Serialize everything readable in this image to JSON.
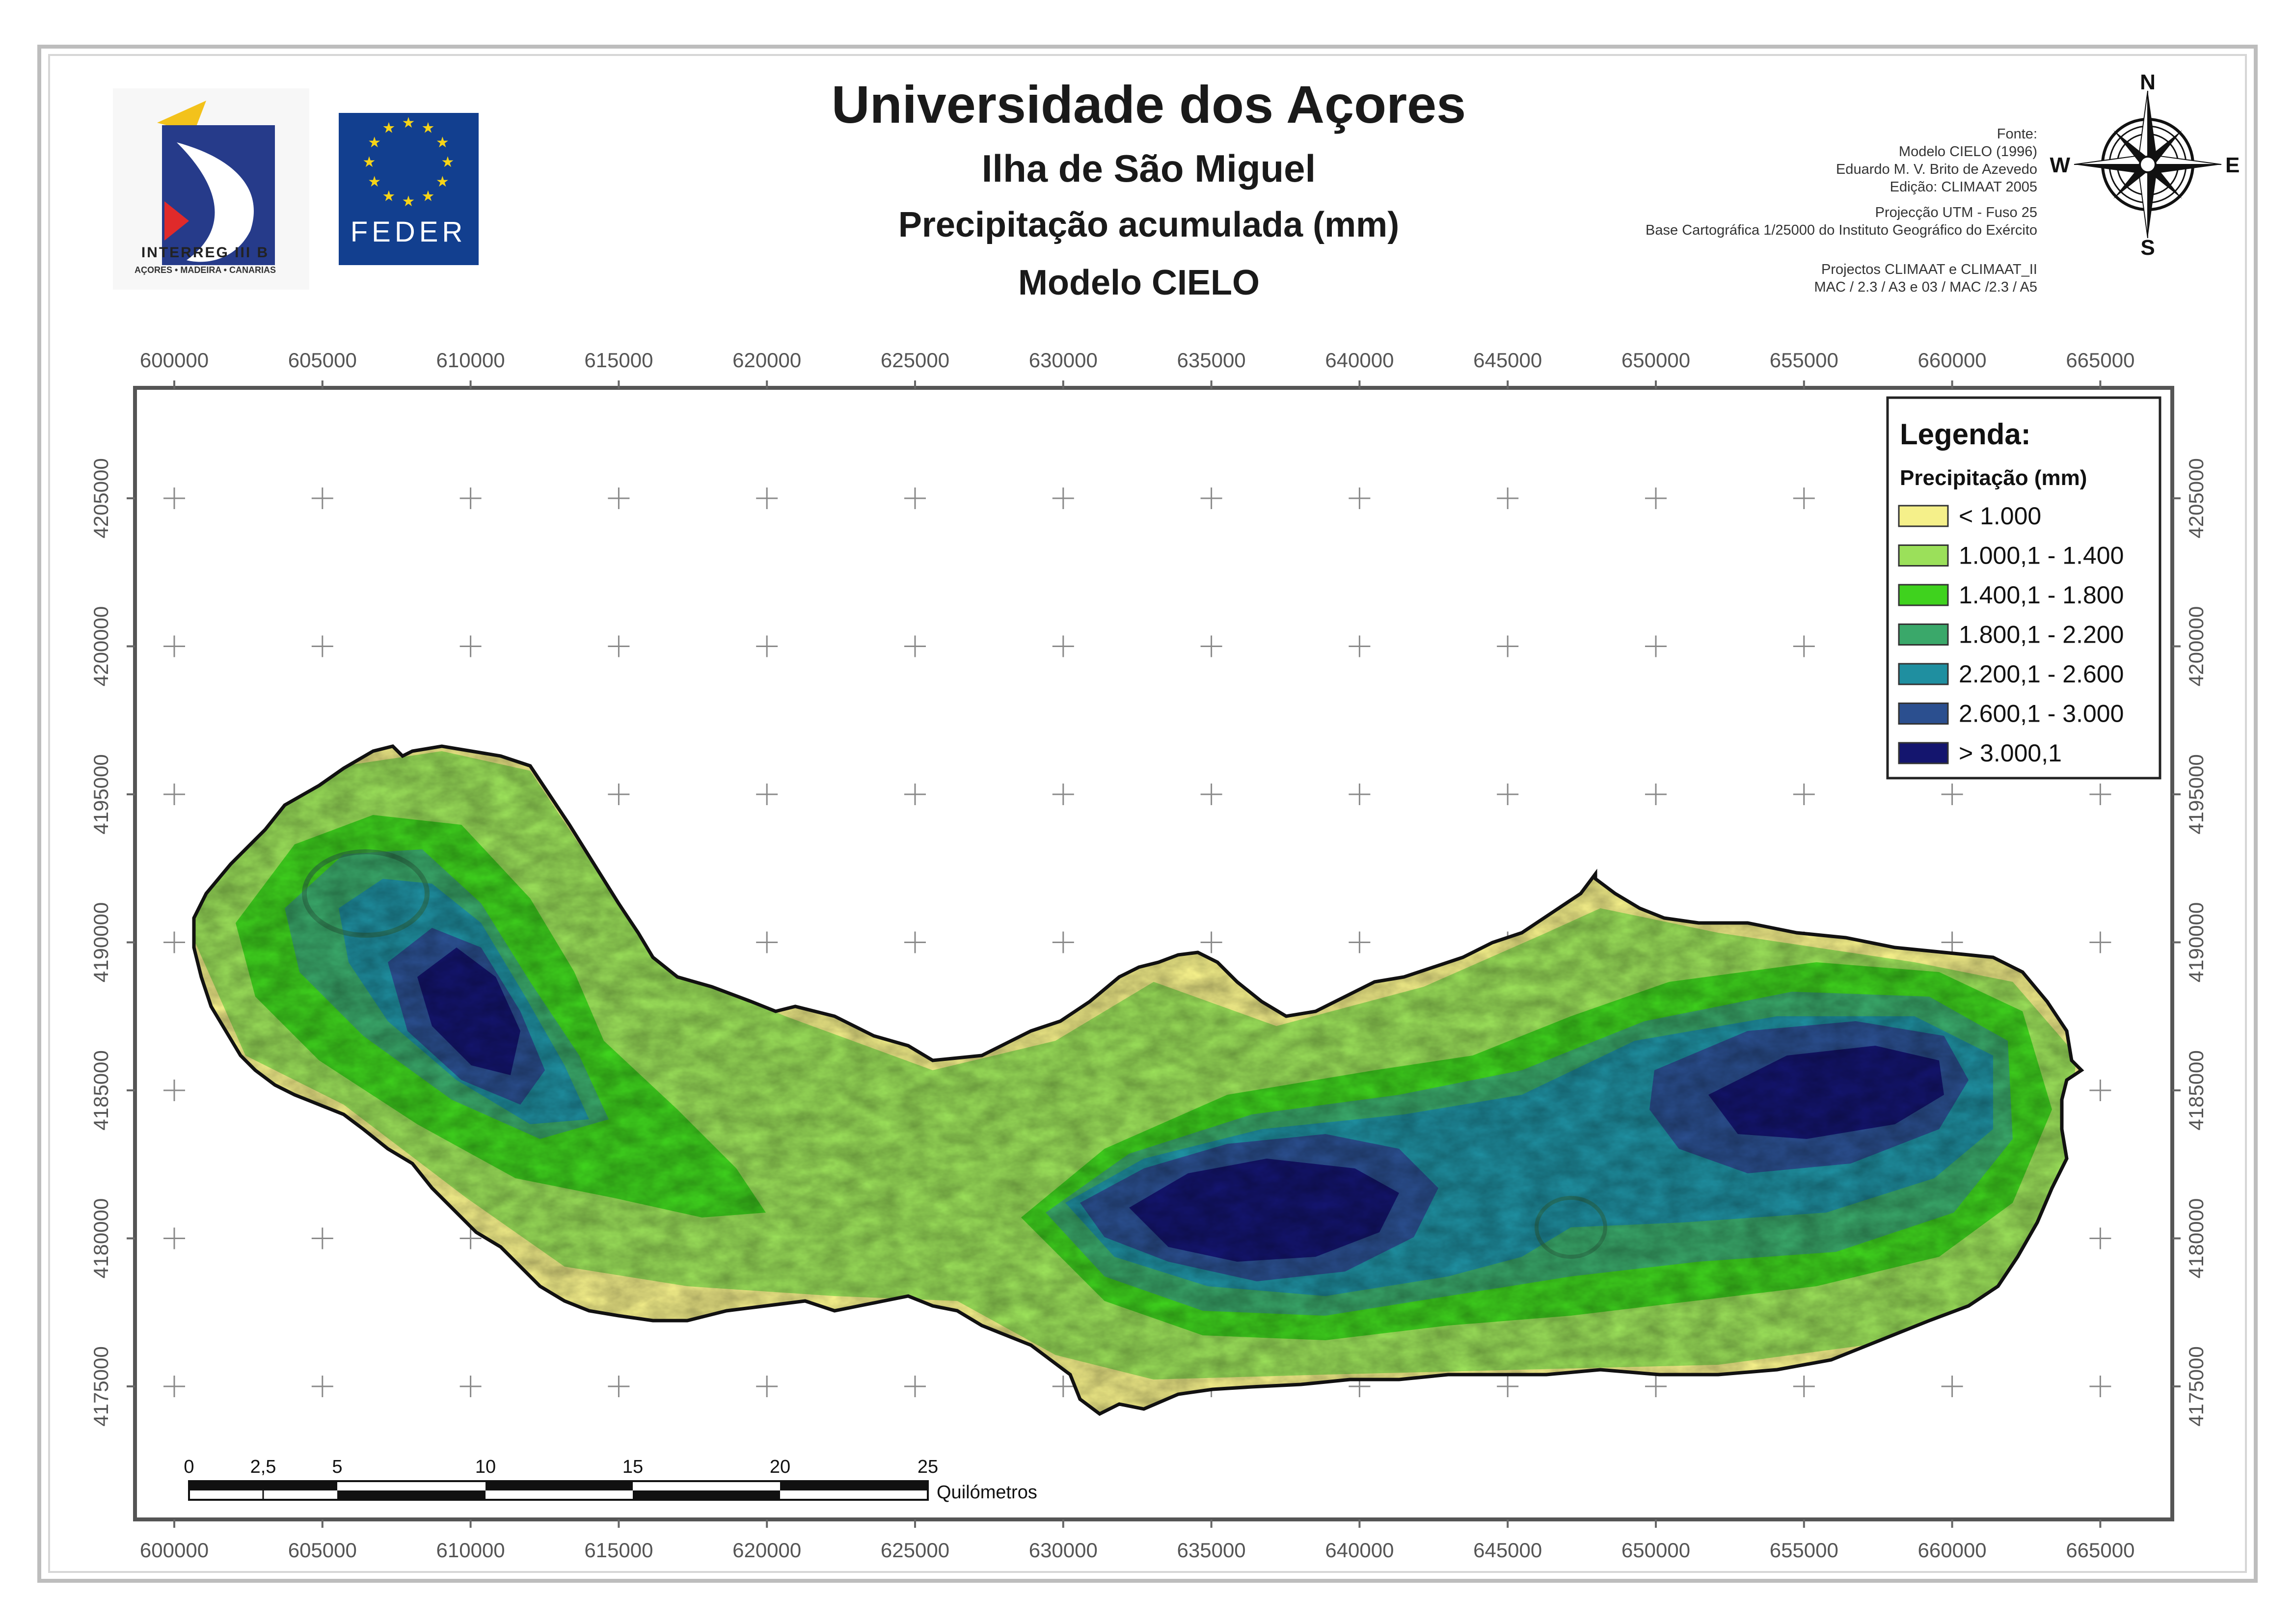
{
  "header": {
    "title": "Universidade dos Açores",
    "island": "Ilha de São Miguel",
    "variable": "Precipitação acumulada (mm)",
    "model": "Modelo CIELO"
  },
  "credits": {
    "lines_top": [
      "Fonte:",
      "Modelo CIELO (1996)",
      "Eduardo M. V. Brito de Azevedo",
      "Edição: CLIMAAT 2005"
    ],
    "lines_mid": [
      "Projecção UTM - Fuso 25",
      "Base Cartográfica 1/25000 do Instituto Geográfico do Exército"
    ],
    "lines_bot": [
      "Projectos CLIMAAT e CLIMAAT_II",
      "MAC / 2.3 / A3 e 03 / MAC /2.3 / A5"
    ]
  },
  "logos": {
    "interreg": "INTERREG III B",
    "interreg_sub": "AÇORES • MADEIRA • CANARIAS",
    "feder": "FEDER"
  },
  "compass": {
    "north": "N",
    "south": "S",
    "east": "E",
    "west": "W"
  },
  "axes": {
    "x_ticks": [
      "600000",
      "605000",
      "610000",
      "615000",
      "620000",
      "625000",
      "630000",
      "635000",
      "640000",
      "645000",
      "650000",
      "655000",
      "660000",
      "665000"
    ],
    "y_ticks": [
      "4205000",
      "4200000",
      "4195000",
      "4190000",
      "4185000",
      "4180000",
      "4175000"
    ]
  },
  "legend": {
    "title": "Legenda:",
    "subtitle": "Precipitação (mm)",
    "classes": [
      {
        "label": "< 1.000",
        "color": "#f5f08a"
      },
      {
        "label": "1.000,1 - 1.400",
        "color": "#9be05a"
      },
      {
        "label": "1.400,1 - 1.800",
        "color": "#3fd21e"
      },
      {
        "label": "1.800,1 - 2.200",
        "color": "#3aa86a"
      },
      {
        "label": "2.200,1 - 2.600",
        "color": "#1f8fa0"
      },
      {
        "label": "2.600,1 - 3.000",
        "color": "#2b4f8f"
      },
      {
        "label": "> 3.000,1",
        "color": "#14156e"
      }
    ]
  },
  "scalebar": {
    "labels": [
      "0",
      "2,5",
      "5",
      "10",
      "15",
      "20",
      "25"
    ],
    "unit": "Quilómetros"
  },
  "colors": {
    "frame": "#555555",
    "sea": "#ffffff",
    "coast": "#111111",
    "grid_cross": "#888888"
  }
}
